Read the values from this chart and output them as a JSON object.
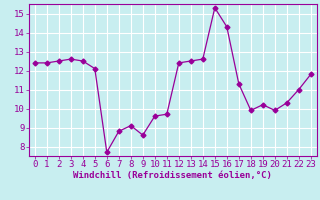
{
  "x": [
    0,
    1,
    2,
    3,
    4,
    5,
    6,
    7,
    8,
    9,
    10,
    11,
    12,
    13,
    14,
    15,
    16,
    17,
    18,
    19,
    20,
    21,
    22,
    23
  ],
  "y": [
    12.4,
    12.4,
    12.5,
    12.6,
    12.5,
    12.1,
    7.7,
    8.8,
    9.1,
    8.6,
    9.6,
    9.7,
    12.4,
    12.5,
    12.6,
    15.3,
    14.3,
    11.3,
    9.9,
    10.2,
    9.9,
    10.3,
    11.0,
    11.8
  ],
  "line_color": "#990099",
  "marker": "D",
  "marker_size": 2.5,
  "linewidth": 0.9,
  "xlabel": "Windchill (Refroidissement éolien,°C)",
  "xlabel_fontsize": 6.5,
  "bg_color": "#c8eef0",
  "grid_color": "#ffffff",
  "tick_label_fontsize": 6.5,
  "ylim": [
    7.5,
    15.5
  ],
  "yticks": [
    8,
    9,
    10,
    11,
    12,
    13,
    14,
    15
  ],
  "xlim": [
    -0.5,
    23.5
  ]
}
